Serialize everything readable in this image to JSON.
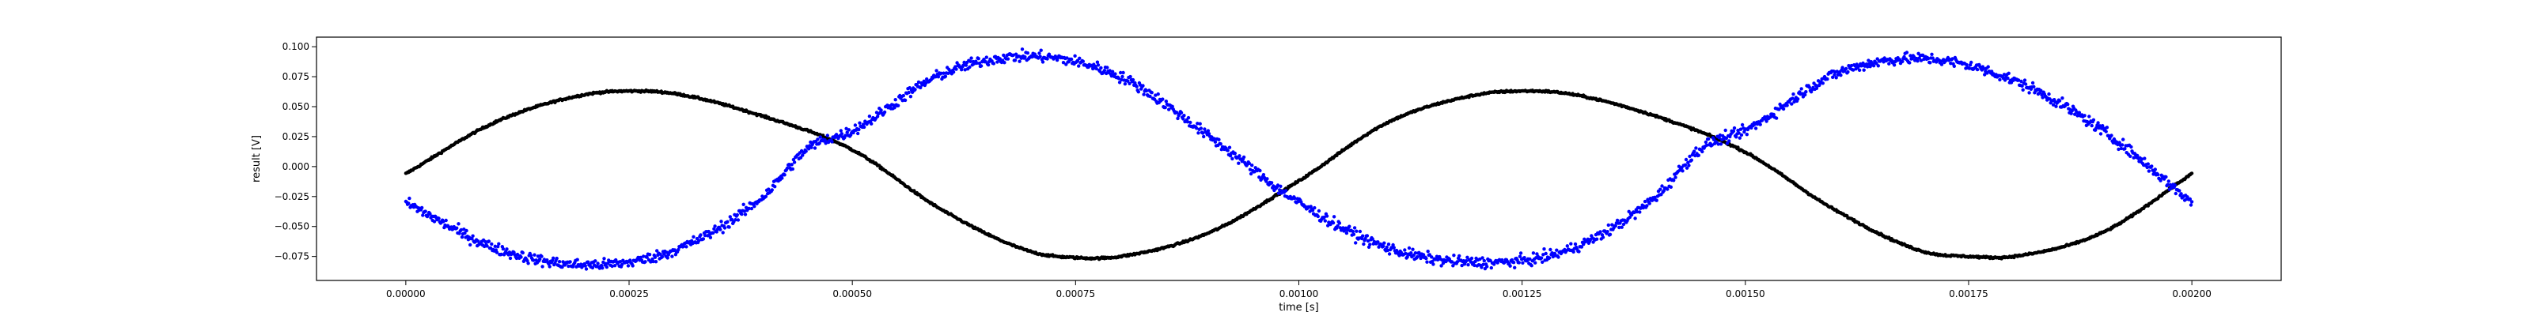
{
  "chart_data": {
    "type": "scatter",
    "title": "",
    "xlabel": "time [s]",
    "ylabel": "result [V]",
    "xlim": [
      -0.0001,
      0.0021
    ],
    "ylim": [
      -0.095,
      0.108
    ],
    "xticks": [
      0.0,
      0.00025,
      0.0005,
      0.00075,
      0.001,
      0.00125,
      0.0015,
      0.00175,
      0.002
    ],
    "xtick_labels": [
      "0.00000",
      "0.00025",
      "0.00050",
      "0.00075",
      "0.00100",
      "0.00125",
      "0.00150",
      "0.00175",
      "0.00200"
    ],
    "yticks": [
      -0.075,
      -0.05,
      -0.025,
      0.0,
      0.025,
      0.05,
      0.075,
      0.1
    ],
    "ytick_labels": [
      "−0.075",
      "−0.050",
      "−0.025",
      "0.000",
      "0.025",
      "0.050",
      "0.075",
      "0.100"
    ],
    "grid": false,
    "legend": "none",
    "series": [
      {
        "color": "#000000",
        "marker": "dot",
        "noise": 0.0008,
        "x": [
          0.0,
          0.0001,
          0.0002,
          0.00025,
          0.0003,
          0.0004,
          0.0005,
          0.0006,
          0.0007,
          0.00075,
          0.0008,
          0.0009,
          0.001,
          0.0011,
          0.0012,
          0.00125,
          0.0013,
          0.0014,
          0.0015,
          0.0016,
          0.0017,
          0.00175,
          0.0018,
          0.0019,
          0.002
        ],
        "y": [
          -0.006,
          0.037,
          0.06,
          0.063,
          0.061,
          0.042,
          0.014,
          -0.036,
          -0.071,
          -0.076,
          -0.075,
          -0.055,
          -0.012,
          0.037,
          0.06,
          0.063,
          0.061,
          0.042,
          0.012,
          -0.036,
          -0.071,
          -0.075,
          -0.075,
          -0.055,
          -0.006
        ]
      },
      {
        "color": "#0000ff",
        "marker": "dot",
        "noise": 0.0045,
        "x": [
          0.0,
          0.0001,
          0.0002,
          0.0003,
          0.0004,
          0.00045,
          0.0005,
          0.0006,
          0.0007,
          0.0008,
          0.0009,
          0.001,
          0.0011,
          0.0012,
          0.0013,
          0.0014,
          0.00145,
          0.0015,
          0.0016,
          0.0017,
          0.0018,
          0.0019,
          0.002
        ],
        "y": [
          -0.03,
          -0.068,
          -0.082,
          -0.07,
          -0.025,
          0.015,
          0.03,
          0.077,
          0.092,
          0.075,
          0.025,
          -0.03,
          -0.068,
          -0.08,
          -0.07,
          -0.025,
          0.015,
          0.03,
          0.077,
          0.09,
          0.072,
          0.03,
          -0.03
        ]
      }
    ]
  }
}
